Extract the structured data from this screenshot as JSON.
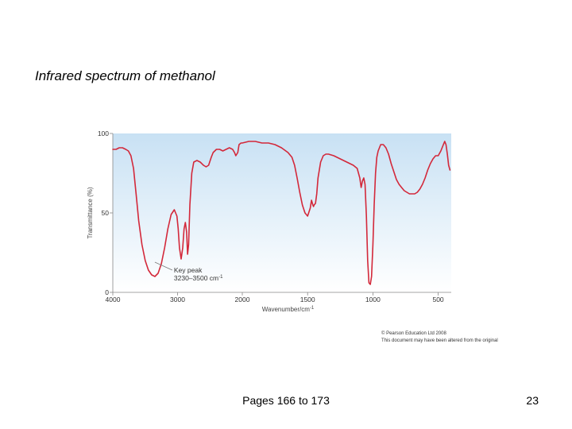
{
  "slide": {
    "title": "Infrared spectrum of methanol",
    "copyright_line1": "© Pearson Education Ltd 2008",
    "copyright_line2": "This document may have been altered from the original",
    "footer": "Pages 166 to 173",
    "page_number": "23"
  },
  "chart_data": {
    "type": "line",
    "title": "",
    "xlabel": "Wavenumber/cm",
    "xlabel_sup": "-1",
    "ylabel": "Transmittance (%)",
    "xlim": [
      4000,
      400
    ],
    "ylim": [
      0,
      100
    ],
    "x_ticks": [
      4000,
      3000,
      2000,
      1500,
      1000,
      500
    ],
    "y_ticks": [
      0,
      50,
      100
    ],
    "background": "#cfe5f5",
    "line_color": "#d3283a",
    "series": [
      {
        "name": "methanol",
        "x": [
          4000,
          3950,
          3900,
          3850,
          3800,
          3760,
          3720,
          3680,
          3640,
          3600,
          3550,
          3500,
          3450,
          3400,
          3350,
          3300,
          3250,
          3200,
          3150,
          3100,
          3050,
          3010,
          2990,
          2970,
          2945,
          2920,
          2900,
          2880,
          2860,
          2845,
          2830,
          2810,
          2780,
          2750,
          2700,
          2650,
          2600,
          2560,
          2520,
          2480,
          2450,
          2400,
          2350,
          2300,
          2250,
          2200,
          2150,
          2120,
          2100,
          2070,
          2050,
          2020,
          2000,
          1950,
          1900,
          1850,
          1800,
          1750,
          1700,
          1650,
          1620,
          1600,
          1580,
          1560,
          1540,
          1520,
          1500,
          1480,
          1470,
          1460,
          1455,
          1450,
          1440,
          1430,
          1420,
          1400,
          1380,
          1360,
          1340,
          1300,
          1250,
          1200,
          1150,
          1120,
          1100,
          1090,
          1080,
          1070,
          1060,
          1050,
          1040,
          1030,
          1020,
          1010,
          1000,
          990,
          980,
          970,
          960,
          950,
          940,
          920,
          900,
          880,
          860,
          840,
          820,
          800,
          780,
          760,
          740,
          720,
          700,
          680,
          660,
          640,
          620,
          600,
          580,
          560,
          540,
          520,
          500,
          480,
          460,
          450,
          440,
          430,
          420,
          410
        ],
        "y": [
          90,
          90,
          91,
          91,
          90,
          89,
          86,
          78,
          62,
          45,
          30,
          20,
          14,
          11,
          10,
          12,
          18,
          28,
          40,
          49,
          52,
          48,
          40,
          28,
          21,
          28,
          40,
          44,
          38,
          24,
          30,
          55,
          75,
          82,
          83,
          82,
          80,
          79,
          80,
          85,
          88,
          90,
          90,
          89,
          90,
          91,
          90,
          88,
          86,
          88,
          93,
          94,
          94,
          95,
          95,
          94,
          94,
          93,
          91,
          88,
          85,
          80,
          72,
          63,
          55,
          50,
          48,
          53,
          58,
          55,
          54,
          55,
          56,
          62,
          72,
          82,
          86,
          87,
          87,
          86,
          84,
          82,
          80,
          78,
          72,
          66,
          70,
          72,
          68,
          48,
          20,
          6,
          5,
          10,
          30,
          55,
          75,
          85,
          89,
          91,
          93,
          93,
          91,
          87,
          81,
          76,
          71,
          68,
          66,
          64,
          63,
          62,
          62,
          62,
          63,
          65,
          68,
          72,
          77,
          81,
          84,
          86,
          86,
          89,
          93,
          95,
          93,
          87,
          80,
          77
        ]
      }
    ],
    "annotations": [
      {
        "text_line1": "Key peak",
        "text_line2": "3230–3500 cm",
        "text_sup": "-1",
        "x": 3400,
        "y": 11
      }
    ]
  }
}
